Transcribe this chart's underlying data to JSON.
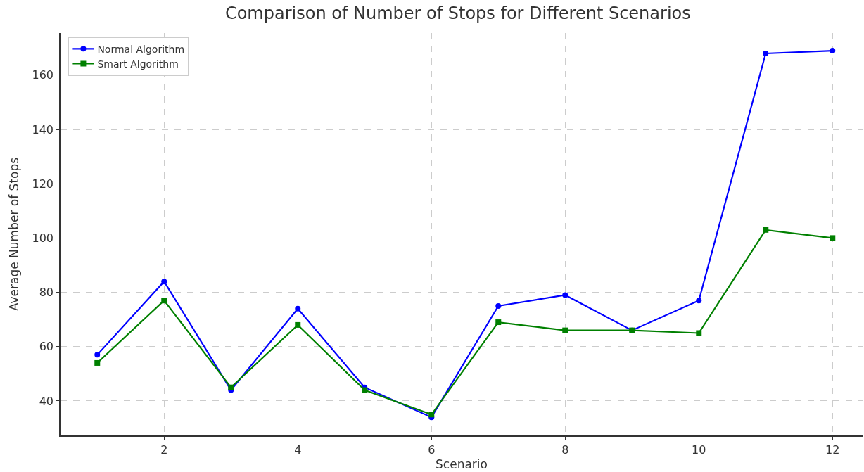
{
  "chart_data": {
    "type": "line",
    "title": "Comparison of Number of Stops for Different Scenarios",
    "xlabel": "Scenario",
    "ylabel": "Average Number of Stops",
    "x": [
      1,
      2,
      3,
      4,
      5,
      6,
      7,
      8,
      9,
      10,
      11,
      12
    ],
    "series": [
      {
        "name": "Normal Algorithm",
        "color": "#0000ff",
        "marker": "circle",
        "values": [
          57,
          84,
          44,
          74,
          45,
          34,
          75,
          79,
          66,
          77,
          168,
          169
        ]
      },
      {
        "name": "Smart Algorithm",
        "color": "#008000",
        "marker": "square",
        "values": [
          54,
          77,
          45,
          68,
          44,
          35,
          69,
          66,
          66,
          65,
          103,
          100
        ]
      }
    ],
    "xlim": [
      0.45,
      12.45
    ],
    "xticks": [
      2,
      4,
      6,
      8,
      10,
      12
    ],
    "ylim": [
      27.3,
      175.5
    ],
    "yticks": [
      40,
      60,
      80,
      100,
      120,
      140,
      160
    ],
    "grid": true,
    "legend": "top left",
    "line_style": "solid"
  }
}
